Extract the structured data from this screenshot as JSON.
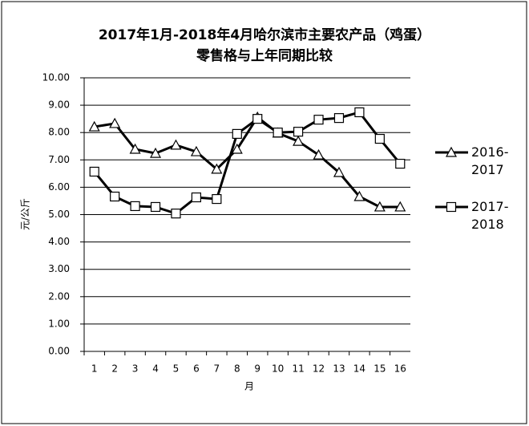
{
  "chart_data": {
    "type": "line",
    "title": [
      "2017年1月-2018年4月哈尔滨市主要农产品（鸡蛋）",
      "零售格与上年同期比较"
    ],
    "y_label": "元/公斤",
    "x_label": "月",
    "categories": [
      1,
      2,
      3,
      4,
      5,
      6,
      7,
      8,
      9,
      10,
      11,
      12,
      13,
      14,
      15,
      16
    ],
    "series": [
      {
        "name": "2016-2017",
        "color": "#000000",
        "marker": "triangle",
        "values": [
          8.21,
          8.33,
          7.39,
          7.24,
          7.54,
          7.3,
          6.66,
          7.39,
          8.56,
          7.98,
          7.68,
          7.18,
          6.54,
          5.66,
          5.28,
          5.28
        ]
      },
      {
        "name": "2017-2018",
        "color": "#000000",
        "marker": "square",
        "values": [
          6.57,
          5.66,
          5.31,
          5.28,
          5.04,
          5.63,
          5.57,
          7.95,
          8.5,
          8.0,
          8.03,
          8.47,
          8.53,
          8.74,
          7.77,
          6.86
        ]
      }
    ],
    "ylim": [
      0,
      10
    ],
    "yticks": [
      {
        "value": 0,
        "label": "0.00"
      },
      {
        "value": 1,
        "label": "1.00"
      },
      {
        "value": 2,
        "label": "2.00"
      },
      {
        "value": 3,
        "label": "3.00"
      },
      {
        "value": 4,
        "label": "4.00"
      },
      {
        "value": 5,
        "label": "5.00"
      },
      {
        "value": 6,
        "label": "6.00"
      },
      {
        "value": 7,
        "label": "7.00"
      },
      {
        "value": 8,
        "label": "8.00"
      },
      {
        "value": 9,
        "label": "9.00"
      },
      {
        "value": 10,
        "label": "10.00"
      }
    ],
    "grid": true
  }
}
